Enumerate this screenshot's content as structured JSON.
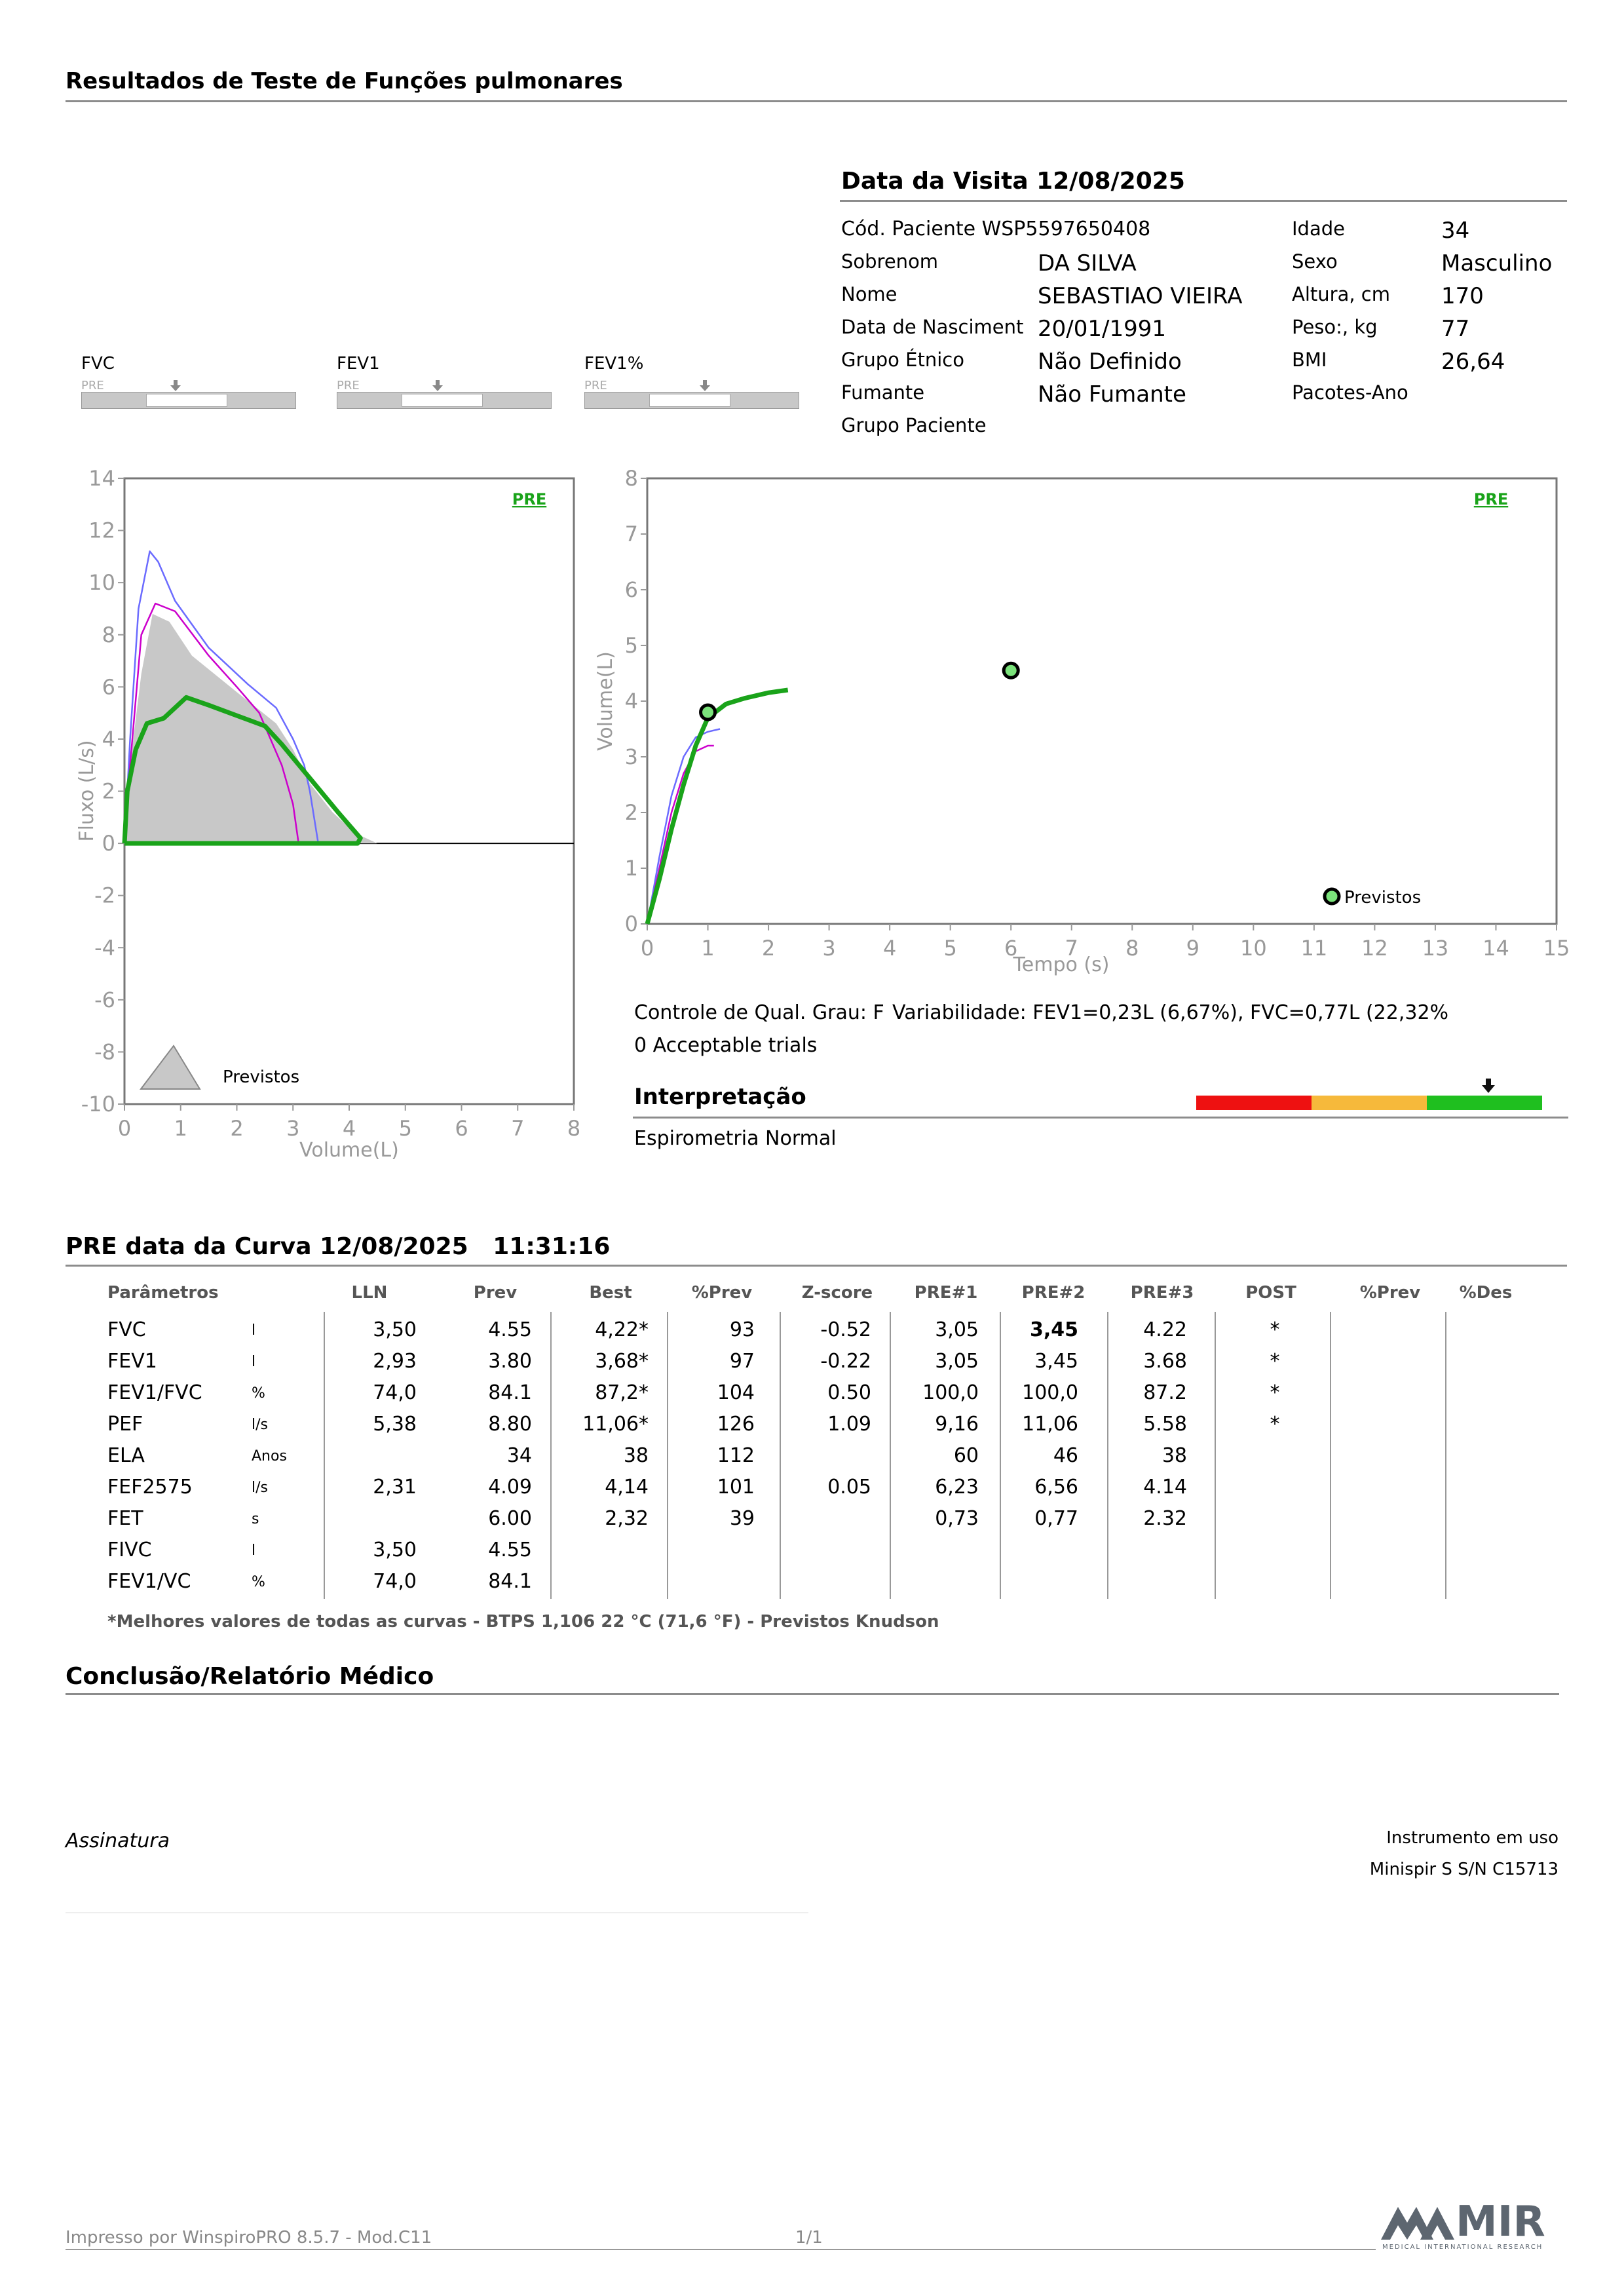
{
  "header": {
    "title": "Resultados de Teste de Funções pulmonares"
  },
  "visit": {
    "title": "Data da Visita 12/08/2025",
    "patient_code": "Cód. Paciente WSP5597650408",
    "fields_left": [
      {
        "label": "Sobrenom",
        "value": "DA SILVA"
      },
      {
        "label": "Nome",
        "value": "SEBASTIAO VIEIRA"
      },
      {
        "label": "Data de Nasciment",
        "value": "20/01/1991"
      },
      {
        "label": "Grupo Étnico",
        "value": "Não Definido"
      },
      {
        "label": "Fumante",
        "value": "Não Fumante"
      },
      {
        "label": "Grupo Paciente",
        "value": ""
      }
    ],
    "fields_right": [
      {
        "label": "Idade",
        "value": "34"
      },
      {
        "label": "Sexo",
        "value": "Masculino"
      },
      {
        "label": "Altura, cm",
        "value": "170"
      },
      {
        "label": "Peso:, kg",
        "value": "77"
      },
      {
        "label": "BMI",
        "value": "26,64"
      },
      {
        "label": "Pacotes-Ano",
        "value": ""
      }
    ]
  },
  "bars": [
    {
      "label": "FVC",
      "sub": "PRE",
      "marker_fraction": 0.44
    },
    {
      "label": "FEV1",
      "sub": "PRE",
      "marker_fraction": 0.47
    },
    {
      "label": "FEV1%",
      "sub": "PRE",
      "marker_fraction": 0.56
    }
  ],
  "chart_data": [
    {
      "type": "line",
      "name": "flow-volume",
      "xlabel": "Volume(L)",
      "ylabel": "Fluxo (L/s)",
      "xlim": [
        0,
        8
      ],
      "ylim": [
        -10,
        14
      ],
      "xticks": [
        "0",
        "1",
        "2",
        "3",
        "4",
        "5",
        "6",
        "7",
        "8"
      ],
      "yticks": [
        "14",
        "12",
        "10",
        "8",
        "6",
        "4",
        "2",
        "0",
        "-2",
        "-4",
        "-6",
        "-8",
        "-10"
      ],
      "badge": "PRE",
      "legend": "Previstos",
      "series": [
        {
          "color": "#c8c8c8",
          "points": [
            [
              0,
              0
            ],
            [
              0.1,
              3
            ],
            [
              0.3,
              6.5
            ],
            [
              0.5,
              8.8
            ],
            [
              0.8,
              8.5
            ],
            [
              1.2,
              7.2
            ],
            [
              2,
              5.8
            ],
            [
              2.7,
              4.6
            ],
            [
              3,
              3.6
            ],
            [
              3.3,
              2.3
            ],
            [
              3.7,
              1.2
            ],
            [
              4.1,
              0.4
            ],
            [
              4.5,
              0
            ]
          ]
        },
        {
          "color": "#6b6bff",
          "points": [
            [
              0,
              0
            ],
            [
              0.1,
              4
            ],
            [
              0.25,
              9
            ],
            [
              0.45,
              11.2
            ],
            [
              0.6,
              10.8
            ],
            [
              0.9,
              9.3
            ],
            [
              1.5,
              7.5
            ],
            [
              2.2,
              6.1
            ],
            [
              2.7,
              5.2
            ],
            [
              3,
              4
            ],
            [
              3.2,
              3
            ],
            [
              3.3,
              2
            ],
            [
              3.45,
              0
            ]
          ]
        },
        {
          "color": "#cc00cc",
          "points": [
            [
              0,
              0
            ],
            [
              0.1,
              3
            ],
            [
              0.3,
              8
            ],
            [
              0.55,
              9.2
            ],
            [
              0.9,
              8.9
            ],
            [
              1.5,
              7.2
            ],
            [
              2,
              6
            ],
            [
              2.4,
              5
            ],
            [
              2.8,
              3
            ],
            [
              3,
              1.5
            ],
            [
              3.1,
              0
            ]
          ]
        },
        {
          "color": "#1aa31a",
          "points": [
            [
              0,
              0
            ],
            [
              0.05,
              2
            ],
            [
              0.2,
              3.6
            ],
            [
              0.4,
              4.6
            ],
            [
              0.7,
              4.8
            ],
            [
              0.95,
              5.3
            ],
            [
              1.1,
              5.6
            ],
            [
              1.5,
              5.3
            ],
            [
              2,
              4.9
            ],
            [
              2.5,
              4.5
            ],
            [
              2.8,
              3.8
            ],
            [
              3.3,
              2.5
            ],
            [
              3.8,
              1.2
            ],
            [
              4.2,
              0.2
            ],
            [
              4.15,
              0
            ],
            [
              0,
              0
            ]
          ]
        }
      ]
    },
    {
      "type": "line",
      "name": "volume-time",
      "xlabel": "Tempo (s)",
      "ylabel": "Volume(L)",
      "xlim": [
        0,
        15
      ],
      "ylim": [
        0,
        8
      ],
      "xticks": [
        "0",
        "1",
        "2",
        "3",
        "4",
        "5",
        "6",
        "7",
        "8",
        "9",
        "10",
        "11",
        "12",
        "13",
        "14",
        "15"
      ],
      "yticks": [
        "8",
        "7",
        "6",
        "5",
        "4",
        "3",
        "2",
        "1",
        "0"
      ],
      "badge": "PRE",
      "legend": "Previstos",
      "markers": [
        [
          1,
          3.8
        ],
        [
          6,
          4.55
        ]
      ],
      "series": [
        {
          "color": "#6b6bff",
          "points": [
            [
              0,
              0
            ],
            [
              0.2,
              1.2
            ],
            [
              0.4,
              2.3
            ],
            [
              0.6,
              3.0
            ],
            [
              0.8,
              3.35
            ],
            [
              1,
              3.45
            ],
            [
              1.2,
              3.5
            ]
          ]
        },
        {
          "color": "#cc00cc",
          "points": [
            [
              0,
              0
            ],
            [
              0.2,
              1
            ],
            [
              0.4,
              2
            ],
            [
              0.6,
              2.7
            ],
            [
              0.8,
              3.1
            ],
            [
              1,
              3.2
            ],
            [
              1.1,
              3.2
            ]
          ]
        },
        {
          "color": "#1aa31a",
          "points": [
            [
              0,
              0
            ],
            [
              0.2,
              0.8
            ],
            [
              0.4,
              1.7
            ],
            [
              0.6,
              2.5
            ],
            [
              0.8,
              3.2
            ],
            [
              1,
              3.7
            ],
            [
              1.3,
              3.95
            ],
            [
              1.6,
              4.05
            ],
            [
              2,
              4.15
            ],
            [
              2.32,
              4.2
            ]
          ]
        }
      ]
    }
  ],
  "quality": {
    "grade": "Controle de Qual. Grau: F",
    "variability": "Variabilidade: FEV1=0,23L (6,67%), FVC=0,77L (22,32%",
    "trials": "0 Acceptable trials"
  },
  "interpretation": {
    "title": "Interpretação",
    "text": "Espirometria Normal",
    "colors": [
      "#ee1111",
      "#f6b93b",
      "#1fbf1f"
    ]
  },
  "curve": {
    "title": "PRE data da Curva 12/08/2025   11:31:16",
    "headers": [
      "Parâmetros",
      "LLN",
      "Prev",
      "Best",
      "%Prev",
      "Z-score",
      "PRE#1",
      "PRE#2",
      "PRE#3",
      "POST",
      "%Prev",
      "%Des"
    ],
    "rows": [
      {
        "param": "FVC",
        "unit": "l",
        "lln": "3,50",
        "prev": "4.55",
        "best": "4,22*",
        "pprev": "93",
        "z": "-0.52",
        "p1": "3,05",
        "p2": "3,45",
        "p3": "4.22",
        "post": "*"
      },
      {
        "param": "FEV1",
        "unit": "l",
        "lln": "2,93",
        "prev": "3.80",
        "best": "3,68*",
        "pprev": "97",
        "z": "-0.22",
        "p1": "3,05",
        "p2": "3,45",
        "p3": "3.68",
        "post": "*"
      },
      {
        "param": "FEV1/FVC",
        "unit": "%",
        "lln": "74,0",
        "prev": "84.1",
        "best": "87,2*",
        "pprev": "104",
        "z": "0.50",
        "p1": "100,0",
        "p2": "100,0",
        "p3": "87.2",
        "post": "*"
      },
      {
        "param": "PEF",
        "unit": "l/s",
        "lln": "5,38",
        "prev": "8.80",
        "best": "11,06*",
        "pprev": "126",
        "z": "1.09",
        "p1": "9,16",
        "p2": "11,06",
        "p3": "5.58",
        "post": "*"
      },
      {
        "param": "ELA",
        "unit": "Anos",
        "lln": "",
        "prev": "34",
        "best": "38",
        "pprev": "112",
        "z": "",
        "p1": "60",
        "p2": "46",
        "p3": "38",
        "post": ""
      },
      {
        "param": "FEF2575",
        "unit": "l/s",
        "lln": "2,31",
        "prev": "4.09",
        "best": "4,14",
        "pprev": "101",
        "z": "0.05",
        "p1": "6,23",
        "p2": "6,56",
        "p3": "4.14",
        "post": ""
      },
      {
        "param": "FET",
        "unit": "s",
        "lln": "",
        "prev": "6.00",
        "best": "2,32",
        "pprev": "39",
        "z": "",
        "p1": "0,73",
        "p2": "0,77",
        "p3": "2.32",
        "post": ""
      },
      {
        "param": "FIVC",
        "unit": "l",
        "lln": "3,50",
        "prev": "4.55",
        "best": "",
        "pprev": "",
        "z": "",
        "p1": "",
        "p2": "",
        "p3": "",
        "post": ""
      },
      {
        "param": "FEV1/VC",
        "unit": "%",
        "lln": "74,0",
        "prev": "84.1",
        "best": "",
        "pprev": "",
        "z": "",
        "p1": "",
        "p2": "",
        "p3": "",
        "post": ""
      }
    ],
    "footnote": "*Melhores valores de todas as curvas - BTPS  1,106  22 °C  (71,6 °F) - Previstos Knudson"
  },
  "conclusion": {
    "title": "Conclusão/Relatório Médico"
  },
  "signature": {
    "label": "Assinatura"
  },
  "instrument": {
    "label": "Instrumento em uso",
    "value": "Minispir S S/N C15713"
  },
  "footer": {
    "printed": "Impresso por WinspiroPRO  8.5.7 - Mod.C11",
    "page": "1/1"
  },
  "logo": {
    "text": "MIR",
    "sub": "MEDICAL INTERNATIONAL RESEARCH",
    "color": "#5d6670"
  }
}
